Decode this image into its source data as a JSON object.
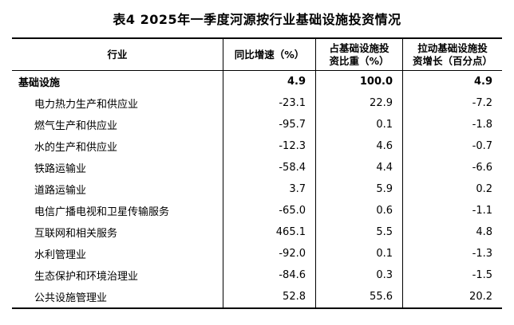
{
  "title": "表4 2025年一季度河源按行业基础设施投资情况",
  "colors": {
    "text": "#000000",
    "background": "#ffffff",
    "border": "#000000"
  },
  "table": {
    "headers": {
      "industry": "行业",
      "yoy": "同比增速（%）",
      "share_line1": "占基础设施投",
      "share_line2": "资比重（%）",
      "pull_line1": "拉动基础设施投",
      "pull_line2": "资增长（百分点）"
    },
    "rows": [
      {
        "industry": "基础设施",
        "yoy": "4.9",
        "share": "100.0",
        "pull": "4.9",
        "bold": true,
        "indent": false
      },
      {
        "industry": "电力热力生产和供应业",
        "yoy": "-23.1",
        "share": "22.9",
        "pull": "-7.2",
        "bold": false,
        "indent": true
      },
      {
        "industry": "燃气生产和供应业",
        "yoy": "-95.7",
        "share": "0.1",
        "pull": "-1.8",
        "bold": false,
        "indent": true
      },
      {
        "industry": "水的生产和供应业",
        "yoy": "-12.3",
        "share": "4.6",
        "pull": "-0.7",
        "bold": false,
        "indent": true
      },
      {
        "industry": "铁路运输业",
        "yoy": "-58.4",
        "share": "4.4",
        "pull": "-6.6",
        "bold": false,
        "indent": true
      },
      {
        "industry": "道路运输业",
        "yoy": "3.7",
        "share": "5.9",
        "pull": "0.2",
        "bold": false,
        "indent": true
      },
      {
        "industry": "电信广播电视和卫星传输服务",
        "yoy": "-65.0",
        "share": "0.6",
        "pull": "-1.1",
        "bold": false,
        "indent": true
      },
      {
        "industry": "互联网和相关服务",
        "yoy": "465.1",
        "share": "5.5",
        "pull": "4.8",
        "bold": false,
        "indent": true
      },
      {
        "industry": "水利管理业",
        "yoy": "-92.0",
        "share": "0.1",
        "pull": "-1.3",
        "bold": false,
        "indent": true
      },
      {
        "industry": "生态保护和环境治理业",
        "yoy": "-84.6",
        "share": "0.3",
        "pull": "-1.5",
        "bold": false,
        "indent": true
      },
      {
        "industry": "公共设施管理业",
        "yoy": "52.8",
        "share": "55.6",
        "pull": "20.2",
        "bold": false,
        "indent": true
      }
    ]
  }
}
